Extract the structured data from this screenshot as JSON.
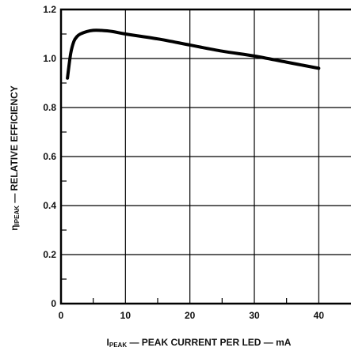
{
  "chart_data": {
    "type": "line",
    "xlabel": {
      "symbol": "I",
      "subscript": "PEAK",
      "text": " — PEAK CURRENT PER LED — mA"
    },
    "ylabel": {
      "symbol": "η",
      "subscript": "IPEAK",
      "text": " — RELATIVE EFFICIENCY"
    },
    "xlim": [
      0,
      45
    ],
    "ylim": [
      0,
      1.2
    ],
    "x_ticks": [
      0,
      10,
      20,
      30,
      40
    ],
    "x_tick_labels": [
      "0",
      "10",
      "20",
      "30",
      "40"
    ],
    "x_minor_ticks": [
      5,
      15,
      25,
      35
    ],
    "y_ticks": [
      0,
      0.2,
      0.4,
      0.6,
      0.8,
      1.0,
      1.2
    ],
    "y_tick_labels": [
      "0",
      "0.2",
      "0.4",
      "0.6",
      "0.8",
      "1.0",
      "1.2"
    ],
    "y_minor_ticks": [
      0.1,
      0.3,
      0.5,
      0.7,
      0.9,
      1.1
    ],
    "grid": "major horizontal and vertical",
    "series": [
      {
        "x": [
          1,
          1.5,
          2,
          2.5,
          3,
          4,
          5,
          6,
          8,
          10,
          15,
          20,
          25,
          30,
          35,
          40
        ],
        "y": [
          0.92,
          1.02,
          1.07,
          1.09,
          1.1,
          1.11,
          1.115,
          1.115,
          1.11,
          1.1,
          1.08,
          1.055,
          1.03,
          1.01,
          0.985,
          0.96
        ],
        "color": "#000000"
      }
    ]
  }
}
